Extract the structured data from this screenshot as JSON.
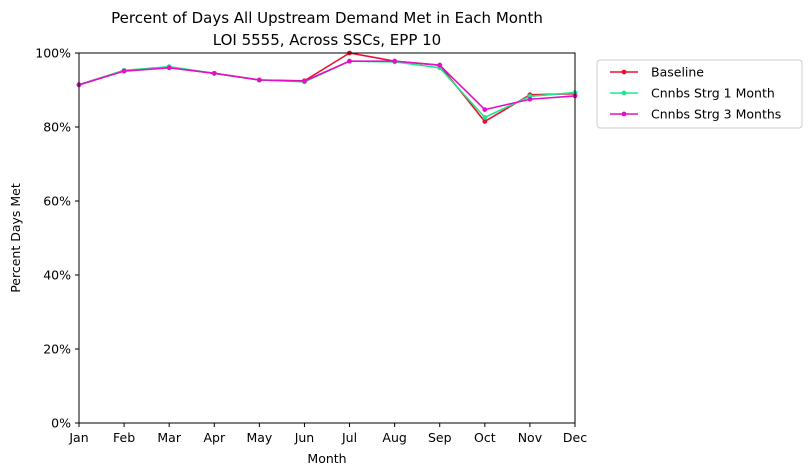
{
  "chart_data": {
    "type": "line",
    "title": "Percent of Days All Upstream Demand Met in Each Month",
    "subtitle": "LOI 5555, Across SSCs, EPP 10",
    "xlabel": "Month",
    "ylabel": "Percent Days Met",
    "categories": [
      "Jan",
      "Feb",
      "Mar",
      "Apr",
      "May",
      "Jun",
      "Jul",
      "Aug",
      "Sep",
      "Oct",
      "Nov",
      "Dec"
    ],
    "ylim": [
      0,
      1
    ],
    "yticks": [
      0,
      0.2,
      0.4,
      0.6,
      0.8,
      1.0
    ],
    "ytick_labels": [
      "0%",
      "20%",
      "40%",
      "60%",
      "80%",
      "100%"
    ],
    "grid": false,
    "legend_position": "outside-upper-right",
    "series": [
      {
        "name": "Baseline",
        "color": "#e8102e",
        "values": [
          0.914,
          0.953,
          0.961,
          0.945,
          0.927,
          0.925,
          1.0,
          0.978,
          0.967,
          0.815,
          0.887,
          0.89
        ]
      },
      {
        "name": "Cnnbs Strg 1 Month",
        "color": "#1ee88c",
        "values": [
          0.914,
          0.953,
          0.963,
          0.945,
          0.927,
          0.922,
          0.978,
          0.976,
          0.96,
          0.826,
          0.883,
          0.893
        ]
      },
      {
        "name": "Cnnbs Strg 3 Months",
        "color": "#e410c8",
        "values": [
          0.914,
          0.951,
          0.96,
          0.945,
          0.927,
          0.924,
          0.978,
          0.978,
          0.967,
          0.847,
          0.875,
          0.884
        ]
      }
    ]
  }
}
